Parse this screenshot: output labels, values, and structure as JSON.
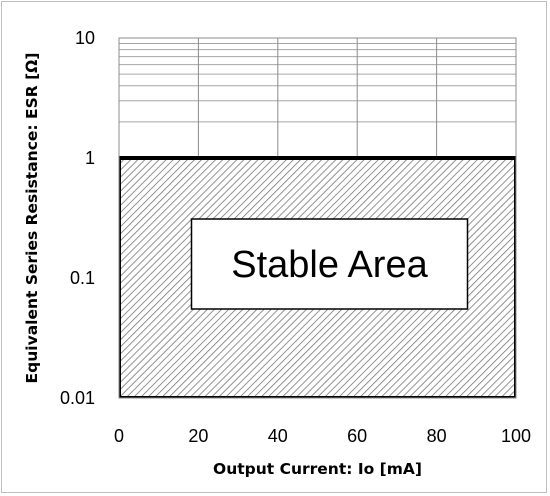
{
  "chart_data": {
    "type": "area",
    "xlabel": "Output Current: Io [mA]",
    "ylabel": "Equivalent  Series Resistance:  ESR [Ω]",
    "xlim": [
      0,
      100
    ],
    "ylim": [
      0.01,
      10
    ],
    "y_scale": "log",
    "grid": true,
    "x_ticks": [
      "0",
      "20",
      "40",
      "60",
      "80",
      "100"
    ],
    "y_ticks": [
      "0.01",
      "0.1",
      "1",
      "10"
    ],
    "series": [
      {
        "x": [
          0,
          100
        ],
        "y_lower": [
          0.01,
          0.01
        ],
        "y_upper": [
          1,
          1
        ]
      }
    ],
    "annotations": [
      {
        "text": "Stable Area",
        "x": 50,
        "y": 0.1
      }
    ]
  }
}
